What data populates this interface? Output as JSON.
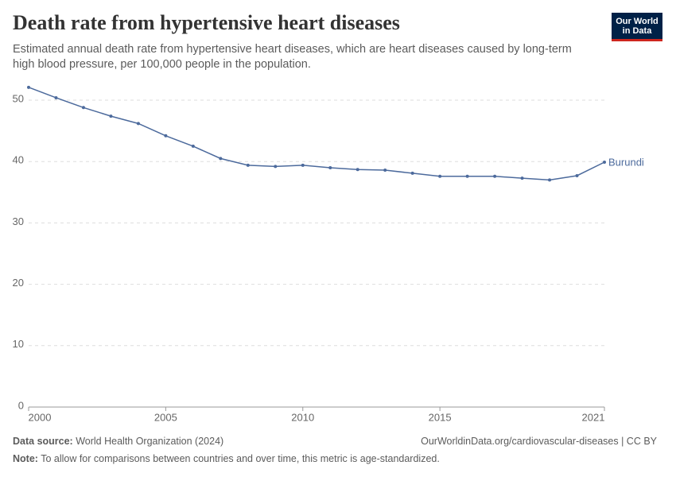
{
  "chart_data": {
    "type": "line",
    "title": "Death rate from hypertensive heart diseases",
    "subtitle": "Estimated annual death rate from hypertensive heart diseases, which are heart diseases caused by long-term high blood pressure, per 100,000 people in the population.",
    "logo": [
      "Our World",
      "in Data"
    ],
    "x": [
      2000,
      2001,
      2002,
      2003,
      2004,
      2005,
      2006,
      2007,
      2008,
      2009,
      2010,
      2011,
      2012,
      2013,
      2014,
      2015,
      2016,
      2017,
      2018,
      2019,
      2020,
      2021
    ],
    "series": [
      {
        "name": "Burundi",
        "color": "#4c6a9c",
        "values": [
          52.1,
          50.4,
          48.8,
          47.4,
          46.2,
          44.2,
          42.5,
          40.5,
          39.4,
          39.2,
          39.4,
          39.0,
          38.7,
          38.6,
          38.1,
          37.6,
          37.6,
          37.6,
          37.3,
          37.0,
          37.7,
          39.9
        ]
      }
    ],
    "xlim": [
      2000,
      2021
    ],
    "xticks": [
      2000,
      2005,
      2010,
      2015,
      2021
    ],
    "ylim": [
      0,
      52
    ],
    "yticks": [
      0,
      10,
      20,
      30,
      40,
      50
    ],
    "grid": true,
    "source_label": "Data source:",
    "source": "World Health Organization (2024)",
    "url": "OurWorldinData.org/cardiovascular-diseases | CC BY",
    "note_label": "Note:",
    "note": "To allow for comparisons between countries and over time, this metric is age-standardized."
  }
}
